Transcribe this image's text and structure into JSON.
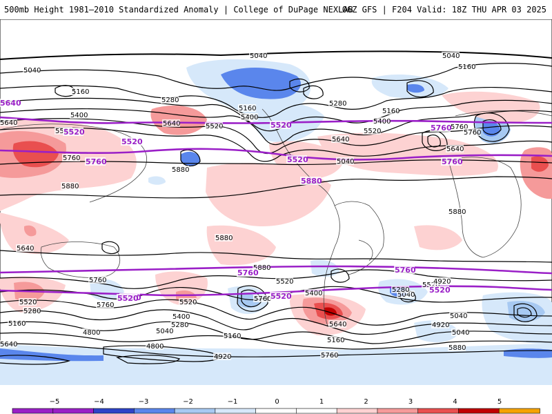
{
  "header": {
    "title": "500mb Height 1981–2010 Standardized Anomaly | College of DuPage NEXLAB",
    "run_info": "06Z GFS | F204 Valid: 18Z THU APR 03 2025"
  },
  "colors": {
    "pos1": "#fdd2d2",
    "pos2": "#f59a9a",
    "pos3": "#e94f4f",
    "pos4": "#c00000",
    "pos5": "#f5a300",
    "neg1": "#d6e8fa",
    "neg2": "#a7c9f2",
    "neg3": "#5a86ec",
    "neg4": "#2e44c8",
    "neg5": "#9a1fc7",
    "contour": "#000000",
    "reference": "#9a1fc7"
  },
  "contour_labels": [
    {
      "text": "5040"
    },
    {
      "text": "5040"
    },
    {
      "text": "5040"
    },
    {
      "text": "5160"
    },
    {
      "text": "5160"
    },
    {
      "text": "5160"
    },
    {
      "text": "5160"
    },
    {
      "text": "5280"
    },
    {
      "text": "5280"
    },
    {
      "text": "5400"
    },
    {
      "text": "5400"
    },
    {
      "text": "5400"
    },
    {
      "text": "5520"
    },
    {
      "text": "5520"
    },
    {
      "text": "5520"
    },
    {
      "text": "5640"
    },
    {
      "text": "5640"
    },
    {
      "text": "5640"
    },
    {
      "text": "5760"
    },
    {
      "text": "5760"
    },
    {
      "text": "5040"
    },
    {
      "text": "5640"
    },
    {
      "text": "5760"
    },
    {
      "text": "5880"
    },
    {
      "text": "5880"
    },
    {
      "text": "5880"
    },
    {
      "text": "5880"
    },
    {
      "text": "5880"
    },
    {
      "text": "5640"
    },
    {
      "text": "5760"
    },
    {
      "text": "5520"
    },
    {
      "text": "5280"
    },
    {
      "text": "5160"
    },
    {
      "text": "5760"
    },
    {
      "text": "5520"
    },
    {
      "text": "5400"
    },
    {
      "text": "5280"
    },
    {
      "text": "5040"
    },
    {
      "text": "4800"
    },
    {
      "text": "4800"
    },
    {
      "text": "4920"
    },
    {
      "text": "5160"
    },
    {
      "text": "5640"
    },
    {
      "text": "5760"
    },
    {
      "text": "5520"
    },
    {
      "text": "5400"
    },
    {
      "text": "5640"
    },
    {
      "text": "5040"
    },
    {
      "text": "5520"
    },
    {
      "text": "4920"
    },
    {
      "text": "5280"
    },
    {
      "text": "5160"
    },
    {
      "text": "5040"
    },
    {
      "text": "4920"
    },
    {
      "text": "5040"
    },
    {
      "text": "5880"
    },
    {
      "text": "5760"
    }
  ],
  "reference_labels": [
    {
      "text": "5640"
    },
    {
      "text": "5520"
    },
    {
      "text": "5520"
    },
    {
      "text": "5760"
    },
    {
      "text": "5520"
    },
    {
      "text": "5760"
    },
    {
      "text": "5520"
    },
    {
      "text": "5760"
    },
    {
      "text": "5760"
    },
    {
      "text": "5760"
    },
    {
      "text": "5760"
    },
    {
      "text": "5520"
    },
    {
      "text": "5520"
    },
    {
      "text": "5520"
    },
    {
      "text": "5880"
    }
  ],
  "colorbar": {
    "ticks": [
      "−5",
      "−4",
      "−3",
      "−2",
      "−1",
      "0",
      "1",
      "2",
      "3",
      "4",
      "5"
    ],
    "bins": [
      "#9a1fc7",
      "#9a1fc7",
      "#2e44c8",
      "#5a86ec",
      "#a7c9f2",
      "#d6e8fa",
      "#ffffff",
      "#ffffff",
      "#fdd2d2",
      "#f59a9a",
      "#e94f4f",
      "#c00000",
      "#f5a300"
    ]
  }
}
